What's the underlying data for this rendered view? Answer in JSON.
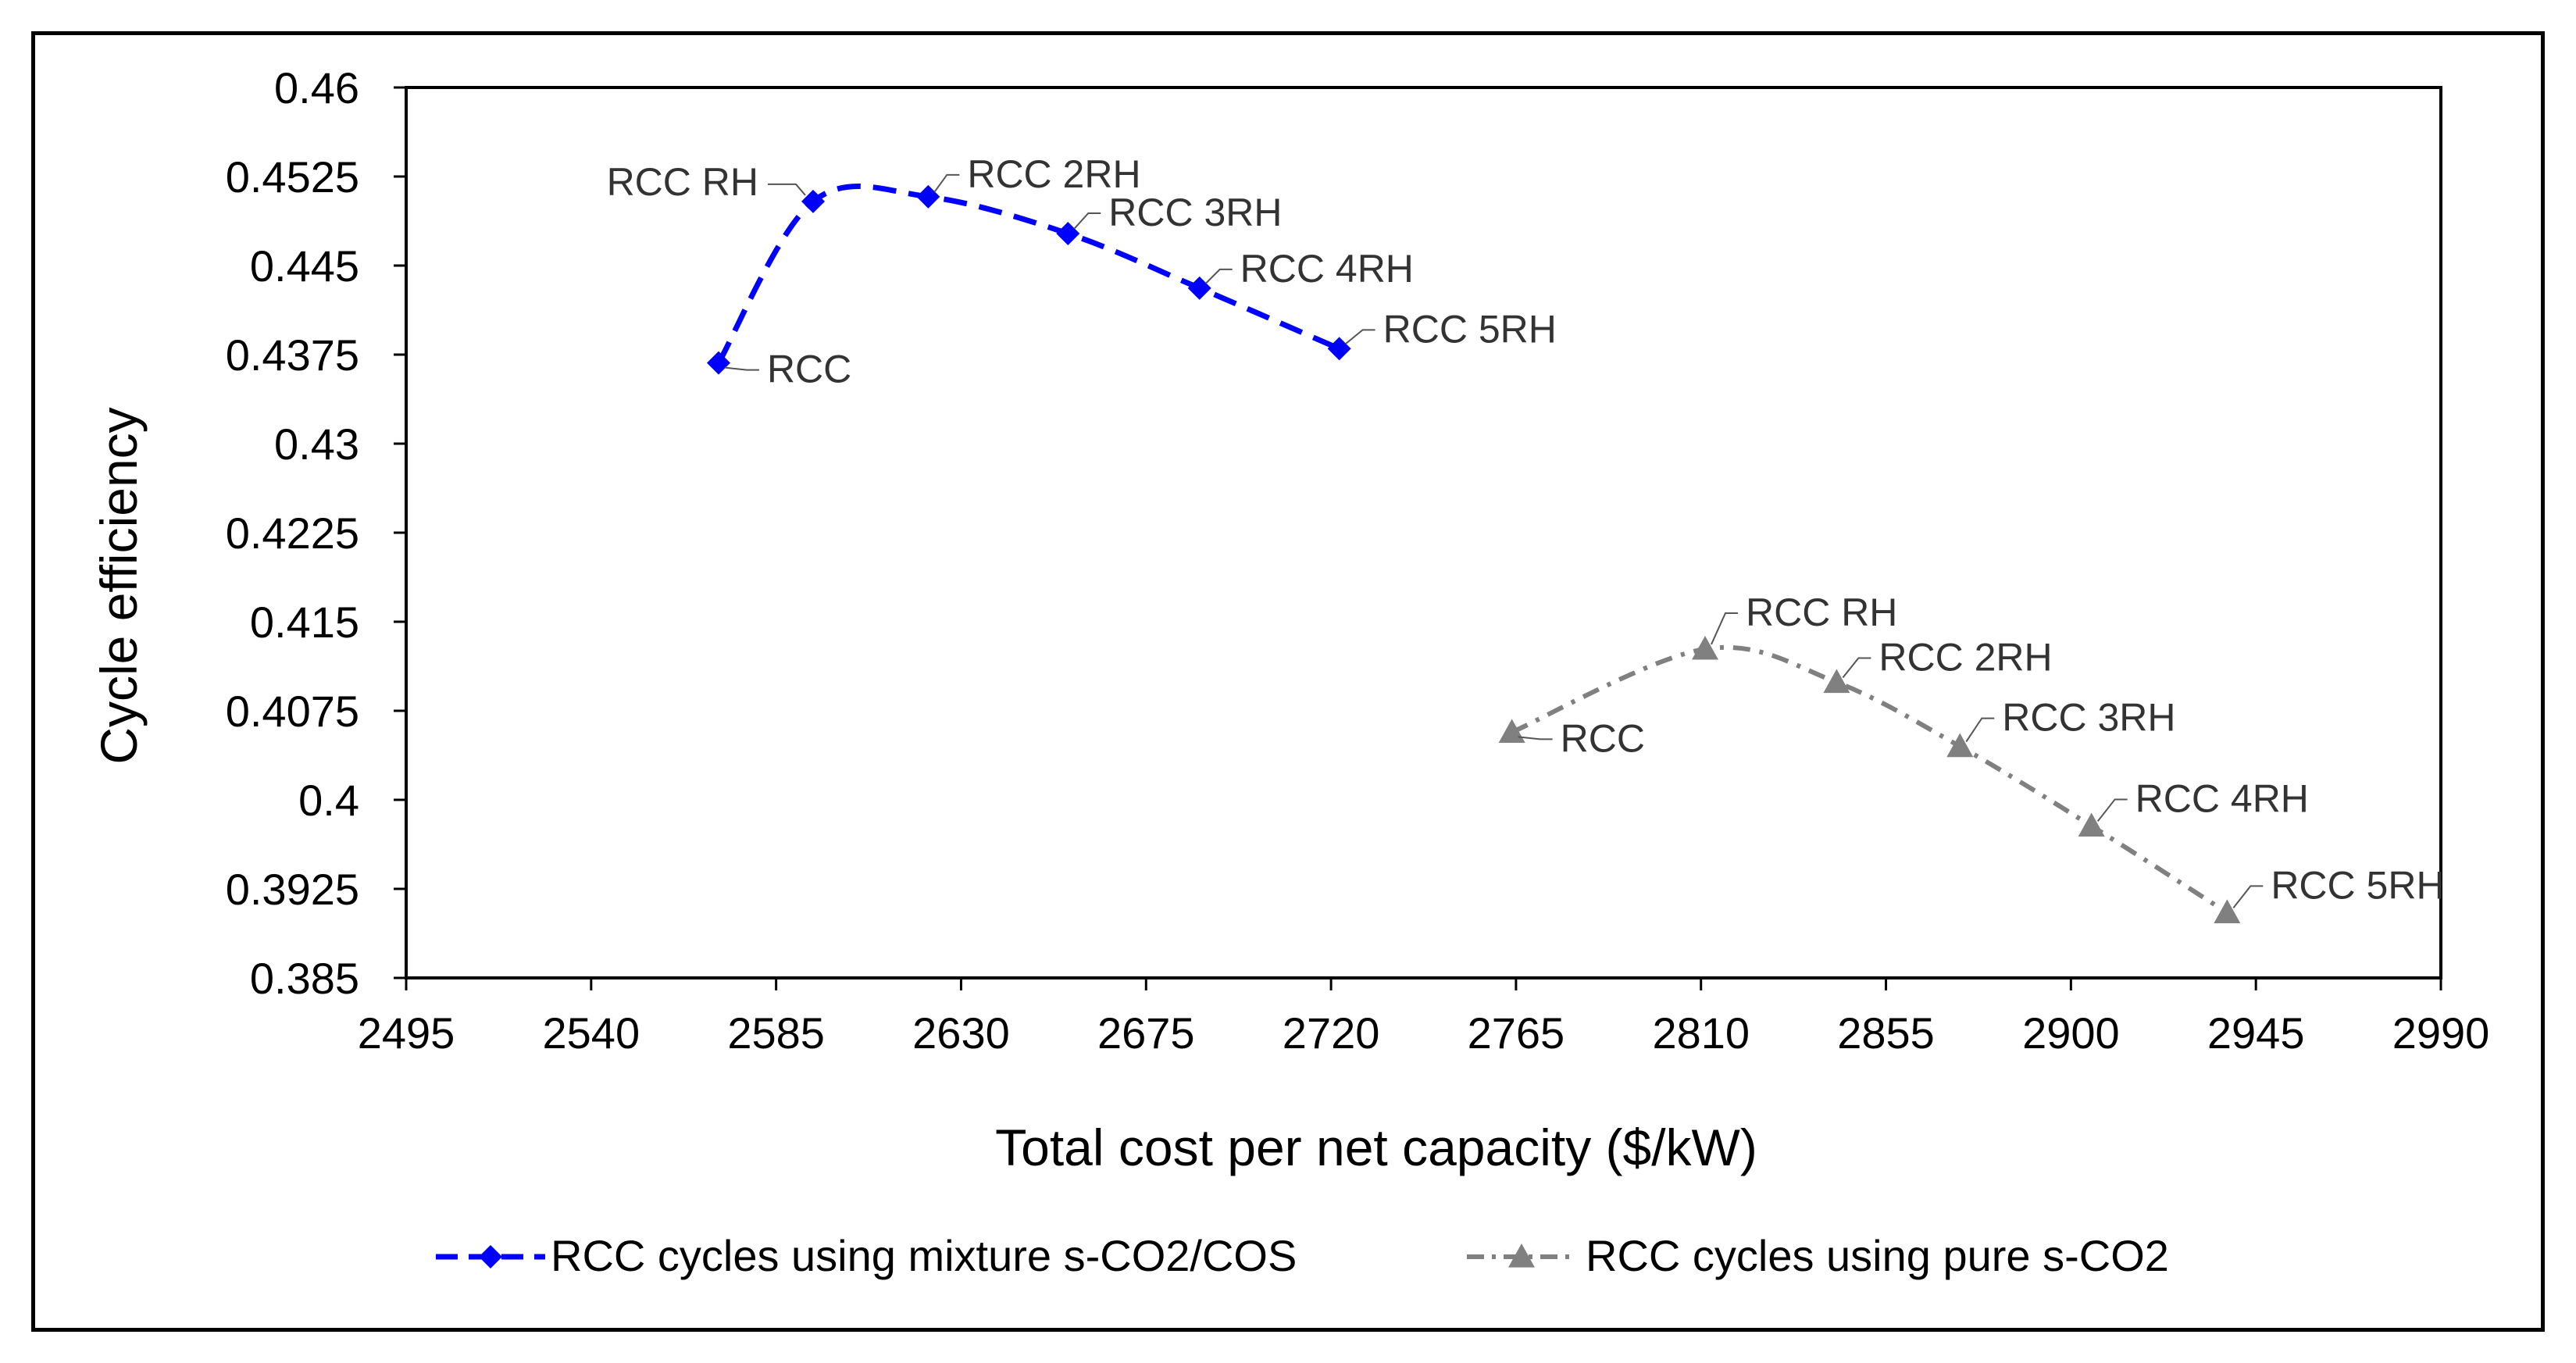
{
  "chart_data": {
    "type": "scatter",
    "title": "",
    "xlabel": "Total cost per net capacity ($/kW)",
    "ylabel": "Cycle efficiency",
    "xlim": [
      2495,
      2990
    ],
    "ylim": [
      0.385,
      0.46
    ],
    "x_ticks": [
      2495,
      2540,
      2585,
      2630,
      2675,
      2720,
      2765,
      2810,
      2855,
      2900,
      2945,
      2990
    ],
    "y_ticks": [
      "0.46",
      "0.4525",
      "0.445",
      "0.4375",
      "0.43",
      "0.4225",
      "0.415",
      "0.4075",
      "0.4",
      "0.3925",
      "0.385"
    ],
    "grid": false,
    "legend_position": "bottom",
    "series": [
      {
        "name": "RCC cycles using mixture s-CO2/COS",
        "color": "#0000ff",
        "marker": "diamond",
        "line": "dashed",
        "points": [
          {
            "x": 2571,
            "y": 0.4368,
            "label": "RCC"
          },
          {
            "x": 2594,
            "y": 0.4504,
            "label": "RCC RH"
          },
          {
            "x": 2622,
            "y": 0.4508,
            "label": "RCC 2RH"
          },
          {
            "x": 2656,
            "y": 0.4477,
            "label": "RCC 3RH"
          },
          {
            "x": 2688,
            "y": 0.4431,
            "label": "RCC 4RH"
          },
          {
            "x": 2722,
            "y": 0.438,
            "label": "RCC 5RH"
          }
        ]
      },
      {
        "name": "RCC cycles using pure s-CO2",
        "color": "#808080",
        "marker": "triangle",
        "line": "dashdot",
        "points": [
          {
            "x": 2764,
            "y": 0.4057,
            "label": "RCC"
          },
          {
            "x": 2811,
            "y": 0.4127,
            "label": "RCC RH"
          },
          {
            "x": 2843,
            "y": 0.4099,
            "label": "RCC 2RH"
          },
          {
            "x": 2873,
            "y": 0.4045,
            "label": "RCC 3RH"
          },
          {
            "x": 2905,
            "y": 0.3978,
            "label": "RCC 4RH"
          },
          {
            "x": 2938,
            "y": 0.3905,
            "label": "RCC 5RH"
          }
        ]
      }
    ]
  }
}
